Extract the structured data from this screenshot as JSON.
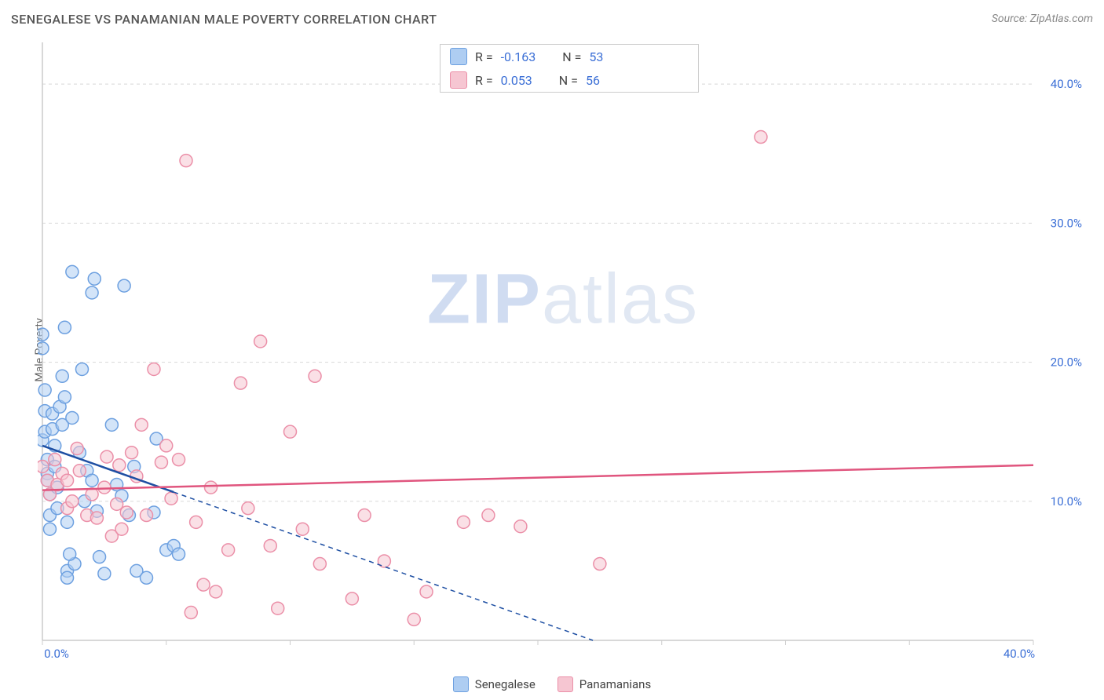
{
  "header": {
    "title": "SENEGALESE VS PANAMANIAN MALE POVERTY CORRELATION CHART",
    "source_prefix": "Source: ",
    "source_name": "ZipAtlas.com"
  },
  "ylabel": "Male Poverty",
  "watermark": {
    "zip": "ZIP",
    "rest": "atlas"
  },
  "chart": {
    "type": "scatter",
    "background_color": "#ffffff",
    "grid_color": "#d8d8d8",
    "grid_dash": "4 4",
    "axis_color": "#cccccc",
    "xlim": [
      0,
      40
    ],
    "ylim": [
      0,
      43
    ],
    "x_tick_start": 0,
    "x_tick_end": 40,
    "x_tick_step": 5,
    "x_label_at": [
      0,
      40
    ],
    "x_label_format_pct": true,
    "y_ticks": [
      10,
      20,
      30,
      40
    ],
    "y_label_format_pct": true,
    "tick_label_color": "#3b6fd6",
    "tick_label_fontsize": 15,
    "marker_radius": 8,
    "marker_stroke_width": 1.5,
    "series": [
      {
        "id": "senegalese",
        "label": "Senegalese",
        "fill": "#aecdf2",
        "stroke": "#6da0e0",
        "fill_opacity": 0.55,
        "R": "-0.163",
        "N": "53",
        "trend": {
          "color": "#1e4fa3",
          "width": 2.5,
          "solid_to_x": 5.3,
          "y_at_0": 14.0,
          "slope": -0.63,
          "dash": "6 5"
        },
        "points": [
          [
            0.0,
            14.4
          ],
          [
            0.0,
            22.0
          ],
          [
            0.0,
            21.0
          ],
          [
            0.1,
            18.0
          ],
          [
            0.1,
            16.5
          ],
          [
            0.1,
            15.0
          ],
          [
            0.2,
            13.0
          ],
          [
            0.2,
            12.0
          ],
          [
            0.2,
            11.5
          ],
          [
            0.3,
            10.5
          ],
          [
            0.3,
            9.0
          ],
          [
            0.3,
            8.0
          ],
          [
            0.4,
            16.3
          ],
          [
            0.4,
            15.2
          ],
          [
            0.5,
            14.0
          ],
          [
            0.5,
            12.5
          ],
          [
            0.6,
            11.0
          ],
          [
            0.6,
            9.5
          ],
          [
            0.7,
            16.8
          ],
          [
            0.8,
            15.5
          ],
          [
            0.8,
            19.0
          ],
          [
            0.9,
            17.5
          ],
          [
            1.0,
            8.5
          ],
          [
            1.0,
            5.0
          ],
          [
            1.0,
            4.5
          ],
          [
            1.2,
            16.0
          ],
          [
            1.2,
            26.5
          ],
          [
            1.3,
            5.5
          ],
          [
            1.5,
            13.5
          ],
          [
            1.6,
            19.5
          ],
          [
            1.7,
            10.0
          ],
          [
            1.8,
            12.2
          ],
          [
            2.0,
            11.5
          ],
          [
            2.0,
            25.0
          ],
          [
            2.1,
            26.0
          ],
          [
            2.2,
            9.3
          ],
          [
            2.5,
            4.8
          ],
          [
            2.8,
            15.5
          ],
          [
            3.0,
            11.2
          ],
          [
            3.2,
            10.4
          ],
          [
            3.3,
            25.5
          ],
          [
            3.5,
            9.0
          ],
          [
            3.7,
            12.5
          ],
          [
            3.8,
            5.0
          ],
          [
            4.2,
            4.5
          ],
          [
            4.5,
            9.2
          ],
          [
            4.6,
            14.5
          ],
          [
            5.0,
            6.5
          ],
          [
            5.3,
            6.8
          ],
          [
            5.5,
            6.2
          ],
          [
            2.3,
            6.0
          ],
          [
            1.1,
            6.2
          ],
          [
            0.9,
            22.5
          ]
        ]
      },
      {
        "id": "panamanians",
        "label": "Panamanians",
        "fill": "#f6c6d2",
        "stroke": "#eb8fa8",
        "fill_opacity": 0.55,
        "R": "0.053",
        "N": "56",
        "trend": {
          "color": "#e0557e",
          "width": 2.5,
          "solid_to_x": 40,
          "y_at_0": 10.8,
          "slope": 0.045,
          "dash": null
        },
        "points": [
          [
            0.0,
            12.5
          ],
          [
            0.2,
            11.5
          ],
          [
            0.3,
            10.5
          ],
          [
            0.5,
            13.0
          ],
          [
            0.6,
            11.2
          ],
          [
            0.8,
            12.0
          ],
          [
            1.0,
            9.5
          ],
          [
            1.0,
            11.5
          ],
          [
            1.2,
            10.0
          ],
          [
            1.5,
            12.2
          ],
          [
            1.8,
            9.0
          ],
          [
            2.0,
            10.5
          ],
          [
            2.2,
            8.8
          ],
          [
            2.5,
            11.0
          ],
          [
            2.8,
            7.5
          ],
          [
            3.0,
            9.8
          ],
          [
            3.2,
            8.0
          ],
          [
            3.4,
            9.2
          ],
          [
            3.6,
            13.5
          ],
          [
            3.8,
            11.8
          ],
          [
            4.0,
            15.5
          ],
          [
            4.2,
            9.0
          ],
          [
            4.5,
            19.5
          ],
          [
            4.8,
            12.8
          ],
          [
            5.0,
            14.0
          ],
          [
            5.2,
            10.2
          ],
          [
            5.5,
            13.0
          ],
          [
            5.8,
            34.5
          ],
          [
            6.0,
            2.0
          ],
          [
            6.2,
            8.5
          ],
          [
            6.5,
            4.0
          ],
          [
            6.8,
            11.0
          ],
          [
            7.0,
            3.5
          ],
          [
            7.5,
            6.5
          ],
          [
            8.0,
            18.5
          ],
          [
            8.3,
            9.5
          ],
          [
            8.8,
            21.5
          ],
          [
            9.2,
            6.8
          ],
          [
            9.5,
            2.3
          ],
          [
            10.0,
            15.0
          ],
          [
            10.5,
            8.0
          ],
          [
            11.0,
            19.0
          ],
          [
            11.2,
            5.5
          ],
          [
            12.5,
            3.0
          ],
          [
            13.0,
            9.0
          ],
          [
            13.8,
            5.7
          ],
          [
            15.0,
            1.5
          ],
          [
            15.5,
            3.5
          ],
          [
            17.0,
            8.5
          ],
          [
            18.0,
            9.0
          ],
          [
            19.3,
            8.2
          ],
          [
            22.5,
            5.5
          ],
          [
            29.0,
            36.2
          ],
          [
            1.4,
            13.8
          ],
          [
            2.6,
            13.2
          ],
          [
            3.1,
            12.6
          ]
        ]
      }
    ]
  },
  "stats_box": {
    "R_label": "R =",
    "N_label": "N ="
  },
  "bottom_legend": {
    "items": [
      {
        "ref": "senegalese"
      },
      {
        "ref": "panamanians"
      }
    ]
  }
}
